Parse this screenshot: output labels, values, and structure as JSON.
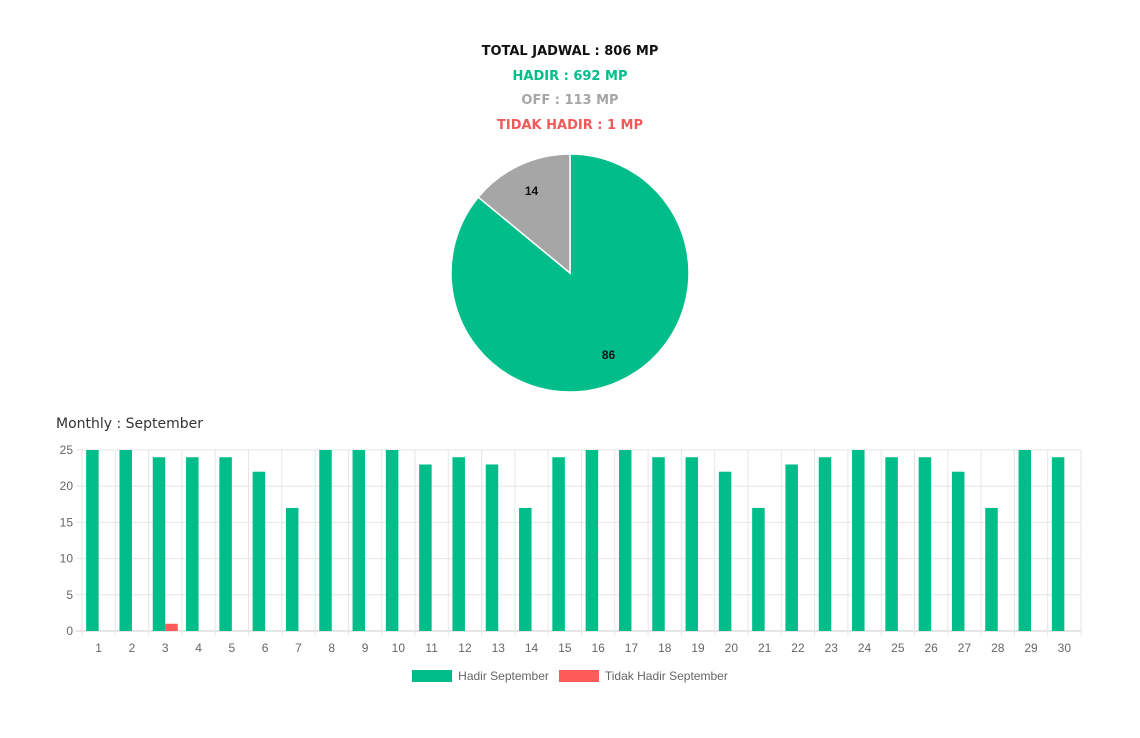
{
  "summary": {
    "total": "TOTAL JADWAL : 806 MP",
    "hadir": "HADIR : 692 MP",
    "off": "OFF : 113 MP",
    "tidak_hadir": "TIDAK HADIR : 1 MP"
  },
  "colors": {
    "total": "#111111",
    "hadir": "#00bd8a",
    "off": "#a6a6a6",
    "tidak_hadir": "#f25a5a"
  },
  "monthly_title": "Monthly : September",
  "chart_data": [
    {
      "type": "pie",
      "slices": [
        {
          "name": "Hadir",
          "value": 86,
          "label": "86",
          "color": "#00bd8a"
        },
        {
          "name": "Off",
          "value": 14,
          "label": "14",
          "color": "#a6a6a6"
        }
      ]
    },
    {
      "type": "bar",
      "categories": [
        "1",
        "2",
        "3",
        "4",
        "5",
        "6",
        "7",
        "8",
        "9",
        "10",
        "11",
        "12",
        "13",
        "14",
        "15",
        "16",
        "17",
        "18",
        "19",
        "20",
        "21",
        "22",
        "23",
        "24",
        "25",
        "26",
        "27",
        "28",
        "29",
        "30"
      ],
      "series": [
        {
          "name": "Hadir September",
          "color": "#00bd8a",
          "values": [
            25,
            25,
            24,
            24,
            24,
            22,
            17,
            25,
            25,
            25,
            23,
            24,
            23,
            17,
            24,
            25,
            25,
            24,
            24,
            22,
            17,
            23,
            24,
            25,
            24,
            24,
            22,
            17,
            25,
            24
          ]
        },
        {
          "name": "Tidak Hadir September",
          "color": "#ff5b5b",
          "values": [
            0,
            0,
            1,
            0,
            0,
            0,
            0,
            0,
            0,
            0,
            0,
            0,
            0,
            0,
            0,
            0,
            0,
            0,
            0,
            0,
            0,
            0,
            0,
            0,
            0,
            0,
            0,
            0,
            0,
            0
          ]
        }
      ],
      "ylim": [
        0,
        25
      ],
      "yticks": [
        0,
        5,
        10,
        15,
        20,
        25
      ],
      "grid": true,
      "legend": "bottom"
    }
  ]
}
